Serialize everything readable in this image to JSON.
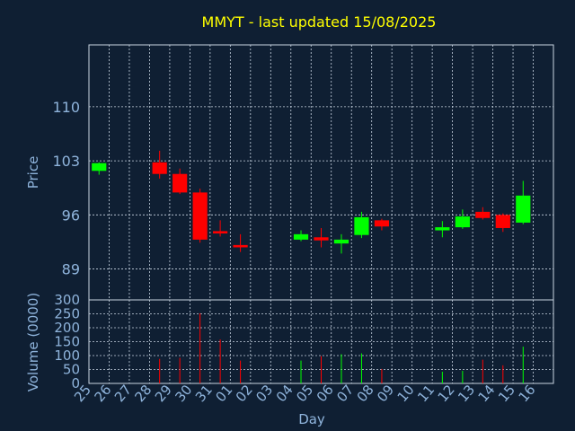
{
  "chart_data": [
    {
      "type": "candlestick",
      "title": "MMYT - last updated 15/08/2025",
      "ylabel": "Price",
      "ylim": [
        85,
        118
      ],
      "yticks": [
        89,
        96,
        103,
        110
      ],
      "colors": {
        "up": "#00ff00",
        "down": "#ff0000"
      },
      "candles": [
        {
          "day": "25",
          "open": 101.7,
          "high": 102.8,
          "low": 101.2,
          "close": 102.7
        },
        {
          "day": "28",
          "open": 102.8,
          "high": 104.3,
          "low": 100.7,
          "close": 101.3
        },
        {
          "day": "29",
          "open": 101.3,
          "high": 102.0,
          "low": 98.7,
          "close": 98.9
        },
        {
          "day": "30",
          "open": 98.9,
          "high": 99.4,
          "low": 92.4,
          "close": 92.8
        },
        {
          "day": "31",
          "open": 93.9,
          "high": 95.3,
          "low": 93.2,
          "close": 93.6
        },
        {
          "day": "01",
          "open": 92.1,
          "high": 93.5,
          "low": 91.2,
          "close": 91.8
        },
        {
          "day": "04",
          "open": 92.8,
          "high": 94.0,
          "low": 92.6,
          "close": 93.5
        },
        {
          "day": "05",
          "open": 93.1,
          "high": 94.3,
          "low": 91.8,
          "close": 92.7
        },
        {
          "day": "06",
          "open": 92.3,
          "high": 93.5,
          "low": 91.0,
          "close": 92.8
        },
        {
          "day": "07",
          "open": 93.4,
          "high": 96.4,
          "low": 93.0,
          "close": 95.7
        },
        {
          "day": "08",
          "open": 95.3,
          "high": 95.5,
          "low": 94.0,
          "close": 94.5
        },
        {
          "day": "11",
          "open": 94.0,
          "high": 95.2,
          "low": 93.1,
          "close": 94.4
        },
        {
          "day": "12",
          "open": 94.4,
          "high": 96.7,
          "low": 94.2,
          "close": 95.8
        },
        {
          "day": "13",
          "open": 96.4,
          "high": 97.0,
          "low": 95.4,
          "close": 95.6
        },
        {
          "day": "14",
          "open": 96.0,
          "high": 96.2,
          "low": 93.8,
          "close": 94.3
        },
        {
          "day": "15",
          "open": 95.0,
          "high": 100.4,
          "low": 94.8,
          "close": 98.5
        }
      ]
    },
    {
      "type": "bar",
      "ylabel": "Volume (0000)",
      "xlabel": "Day",
      "ylim": [
        0,
        300
      ],
      "yticks": [
        0,
        50,
        100,
        150,
        200,
        250,
        300
      ],
      "categories": [
        "25",
        "26",
        "27",
        "28",
        "29",
        "30",
        "31",
        "01",
        "02",
        "03",
        "04",
        "05",
        "06",
        "07",
        "08",
        "09",
        "10",
        "11",
        "12",
        "13",
        "14",
        "15",
        "16"
      ],
      "bars": [
        {
          "day": "28",
          "value": 88,
          "direction": "down"
        },
        {
          "day": "29",
          "value": 92,
          "direction": "down"
        },
        {
          "day": "30",
          "value": 252,
          "direction": "down"
        },
        {
          "day": "31",
          "value": 158,
          "direction": "down"
        },
        {
          "day": "01",
          "value": 82,
          "direction": "down"
        },
        {
          "day": "04",
          "value": 82,
          "direction": "up"
        },
        {
          "day": "05",
          "value": 98,
          "direction": "down"
        },
        {
          "day": "06",
          "value": 105,
          "direction": "up"
        },
        {
          "day": "07",
          "value": 108,
          "direction": "up"
        },
        {
          "day": "08",
          "value": 52,
          "direction": "down"
        },
        {
          "day": "11",
          "value": 42,
          "direction": "up"
        },
        {
          "day": "12",
          "value": 45,
          "direction": "up"
        },
        {
          "day": "13",
          "value": 85,
          "direction": "down"
        },
        {
          "day": "14",
          "value": 65,
          "direction": "down"
        },
        {
          "day": "15",
          "value": 132,
          "direction": "up"
        }
      ]
    }
  ]
}
